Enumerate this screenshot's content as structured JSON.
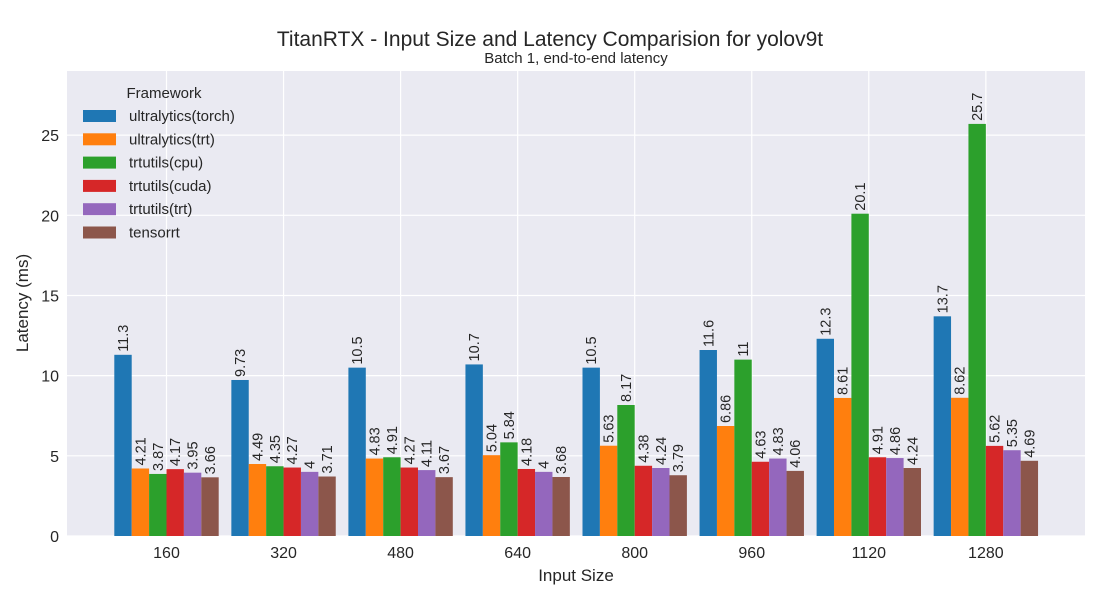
{
  "chart_data": {
    "type": "bar",
    "title": "TitanRTX - Input Size and Latency Comparision for yolov9t",
    "subtitle": "Batch 1, end-to-end latency",
    "xlabel": "Input Size",
    "ylabel": "Latency (ms)",
    "categories": [
      "160",
      "320",
      "480",
      "640",
      "800",
      "960",
      "1120",
      "1280"
    ],
    "ylim": [
      0,
      29
    ],
    "yticks": [
      0,
      5,
      10,
      15,
      20,
      25
    ],
    "grid": true,
    "legend": {
      "title": "Framework",
      "placement": "top-left"
    },
    "series": [
      {
        "name": "ultralytics(torch)",
        "color": "#1f77b4",
        "values": [
          11.3,
          9.73,
          10.5,
          10.7,
          10.5,
          11.6,
          12.3,
          13.7
        ]
      },
      {
        "name": "ultralytics(trt)",
        "color": "#ff7f0e",
        "values": [
          4.21,
          4.49,
          4.83,
          5.04,
          5.63,
          6.86,
          8.61,
          8.62
        ]
      },
      {
        "name": "trtutils(cpu)",
        "color": "#2ca02c",
        "values": [
          3.87,
          4.35,
          4.91,
          5.84,
          8.17,
          11,
          20.1,
          25.7
        ]
      },
      {
        "name": "trtutils(cuda)",
        "color": "#d62728",
        "values": [
          4.17,
          4.27,
          4.27,
          4.18,
          4.38,
          4.63,
          4.91,
          5.62
        ]
      },
      {
        "name": "trtutils(trt)",
        "color": "#9467bd",
        "values": [
          3.95,
          4,
          4.11,
          4,
          4.24,
          4.83,
          4.86,
          5.35
        ]
      },
      {
        "name": "tensorrt",
        "color": "#8c564b",
        "values": [
          3.66,
          3.71,
          3.67,
          3.68,
          3.79,
          4.06,
          4.24,
          4.69
        ]
      }
    ],
    "colors": {
      "plot_background": "#eaeaf2",
      "grid": "#ffffff"
    }
  }
}
